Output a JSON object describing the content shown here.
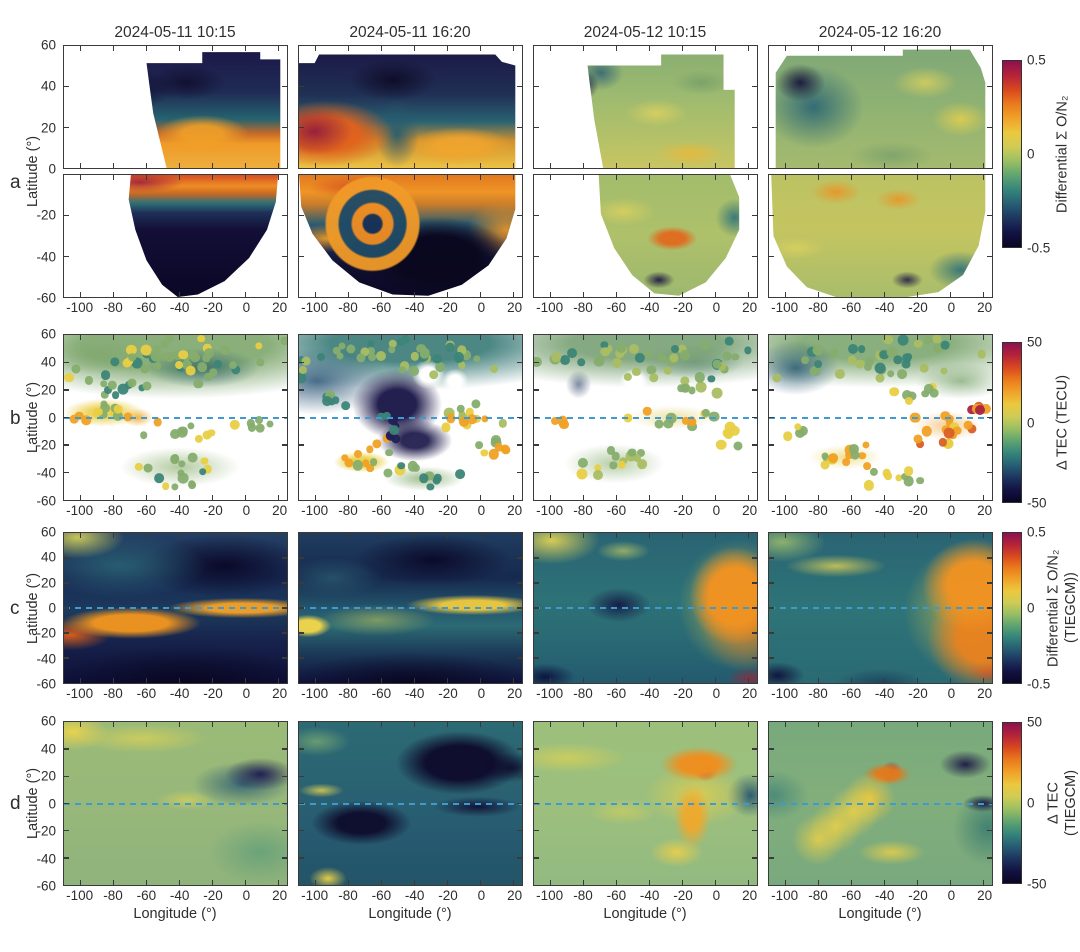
{
  "columns": [
    {
      "title": "2024-05-11 10:15"
    },
    {
      "title": "2024-05-11 16:20"
    },
    {
      "title": "2024-05-12 10:15"
    },
    {
      "title": "2024-05-12 16:20"
    }
  ],
  "axes": {
    "xlabel": "Longitude (°)",
    "ylabel": "Latitude (°)",
    "lon_ticks": [
      "-100",
      "-80",
      "-60",
      "-40",
      "-20",
      "0",
      "20"
    ],
    "lat_ticks": [
      "60",
      "40",
      "20",
      "0",
      "-20",
      "-40",
      "-60"
    ],
    "lat_ticks_north": [
      "60",
      "40",
      "20",
      "0"
    ],
    "lat_ticks_south": [
      "-20",
      "-40",
      "-60"
    ]
  },
  "rows": [
    {
      "id": "a",
      "label": "a",
      "colorbar": {
        "labels": [
          "Differential Σ O/N₂"
        ],
        "ticks": [
          "0.5",
          "0",
          "-0.5"
        ]
      }
    },
    {
      "id": "b",
      "label": "b",
      "colorbar": {
        "labels": [
          "Δ TEC (TECU)"
        ],
        "ticks": [
          "50",
          "0",
          "-50"
        ]
      }
    },
    {
      "id": "c",
      "label": "c",
      "colorbar": {
        "labels": [
          "Differential Σ O/N₂",
          "(TIEGCM))"
        ],
        "ticks": [
          "0.5",
          "0",
          "-0.5"
        ]
      }
    },
    {
      "id": "d",
      "label": "d",
      "colorbar": {
        "labels": [
          "Δ TEC",
          "(TIEGCM)"
        ],
        "ticks": [
          "50",
          "0",
          "-50"
        ]
      }
    }
  ],
  "colors": {
    "equator_dash": "#3f9ad1",
    "axis_text": "#2e2e2e",
    "panel_border": "#3a3a3a",
    "colormap_description": "thermal-like: dark navy → blue → teal → green → yellow → orange → red → magenta",
    "colormap_stops": [
      "#0a0626",
      "#131243",
      "#1d3560",
      "#265e74",
      "#35857b",
      "#5fa471",
      "#9abf62",
      "#cfcc55",
      "#ecc83e",
      "#f0a22a",
      "#ea7a1c",
      "#d8481f",
      "#b5233a",
      "#8c1150"
    ],
    "dot_palette": {
      "g": "#86ad6e",
      "s": "#a9bd62",
      "t": "#3c8577",
      "y": "#e8cf45",
      "o": "#f0a125",
      "r": "#d95f25",
      "c": "#a62441",
      "n": "#232055"
    }
  },
  "chart_data": [
    {
      "panel": "a",
      "type": "heatmap",
      "value_label": "Differential Σ O/N₂",
      "value_range": [
        -0.5,
        0.5
      ],
      "colorbar_ticks": [
        0.5,
        0,
        -0.5
      ],
      "x_label": "Longitude (°)",
      "y_label": "Latitude (°)",
      "x_ticks": [
        -100,
        -80,
        -60,
        -40,
        -20,
        0,
        20
      ],
      "y_ticks": [
        60,
        40,
        20,
        0,
        -20,
        -40,
        -60
      ],
      "columns": [
        "2024-05-11 10:15",
        "2024-05-11 16:20",
        "2024-05-12 10:15",
        "2024-05-12 16:20"
      ],
      "layout": "two stacked sub-panels per column (north 0..60, south -60..0); irregular swath coverage, white = no data",
      "features_by_column": [
        "depletion (navy) poleward of ~20N, enhancement (orange) band 0-15N; southern swath: orange band 0 to -15 then deep depletion, swath tapers to a point",
        "full-width swath; orange enhancement lobe at west edge 0-25N, dark depletion at high N; south: spiral enhancement/depletion structure around (-60,-25), deep depletion SE",
        "weak mixed greens; small navy depletion patch NW of swath; south: modest orange spot near (0,-30), dark spot near -40",
        "weak greens; navy depletion on west of north swath; south: patchy yellow/orange with teal SE corner"
      ]
    },
    {
      "panel": "b",
      "type": "scatter-map",
      "value_label": "Δ TEC (TECU)",
      "value_range": [
        -50,
        50
      ],
      "colorbar_ticks": [
        50,
        0,
        -50
      ],
      "x_ticks": [
        -100,
        -80,
        -60,
        -40,
        -20,
        0,
        20
      ],
      "y_ticks": [
        60,
        40,
        20,
        0,
        -20,
        -40,
        -60
      ],
      "equator_line": 0,
      "columns": [
        "2024-05-11 10:15",
        "2024-05-11 16:20",
        "2024-05-12 10:15",
        "2024-05-12 16:20"
      ],
      "features_by_column": [
        "dense green/teal cloud north of 20N; yellow-orange patches near equator west; sparse green clusters south",
        "deep negative (navy) region at low latitudes mid-panel; yellow arc SW; mixed yellow/green points east of -40",
        "mostly weak values; yellow-orange points near equator east; green clusters in south",
        "strong positive (orange/red) cluster east of -20 near and south of equator; green/teal field north, dark teal NW"
      ]
    },
    {
      "panel": "c",
      "type": "heatmap",
      "value_label": "Differential Σ O/N₂ (TIEGCM))",
      "value_range": [
        -0.5,
        0.5
      ],
      "colorbar_ticks": [
        0.5,
        0,
        -0.5
      ],
      "x_ticks": [
        -100,
        -80,
        -60,
        -40,
        -20,
        0,
        20
      ],
      "y_ticks": [
        60,
        40,
        20,
        0,
        -20,
        -40,
        -60
      ],
      "equator_line": 0,
      "columns": [
        "2024-05-11 10:15",
        "2024-05-11 16:20",
        "2024-05-12 10:15",
        "2024-05-12 16:20"
      ],
      "features_by_column": [
        "dark depletion at mid/high latitudes; narrow orange enhancement band rising from SW (-110,-25) to equator at east; yellow NW corner",
        "similar; yellow enhancement band near equator on east half; small yellow blob at west edge ~-30; dark top and bottom",
        "teal background; dark blob near (-70,0); broad orange enhancement east of -20 spanning the equator; yellow NW corner; dark bottom corners",
        "teal background; large orange enhancement mass on east half; yellow diagonal streak NW; dark SW corner, crimson SE corner"
      ]
    },
    {
      "panel": "d",
      "type": "heatmap",
      "value_label": "Δ TEC (TIEGCM)",
      "value_range": [
        -50,
        50
      ],
      "colorbar_ticks": [
        50,
        0,
        -50
      ],
      "x_ticks": [
        -100,
        -80,
        -60,
        -40,
        -20,
        0,
        20
      ],
      "y_ticks": [
        60,
        40,
        20,
        0,
        -20,
        -40,
        -60
      ],
      "equator_line": 0,
      "columns": [
        "2024-05-11 10:15",
        "2024-05-11 16:20",
        "2024-05-12 10:15",
        "2024-05-12 16:20"
      ],
      "features_by_column": [
        "weak positive green background; yellow band along north edge (bright NW corner); navy negative wedge NE near (0..20, 10..30)",
        "teal background; large navy negative masses NE and west-of-center below equator; yellow streak at west equator; bright yellow SW corner",
        "green background; orange positive hook near 0 lon arcing from +25 down to -40 with red core; dark teal pocket east of it",
        "green-teal background; diagonal yellow positive band crossing equator near -40 with orange core at (-40,10); navy patches NE and at east equator; yellow crescent in south"
      ]
    }
  ]
}
